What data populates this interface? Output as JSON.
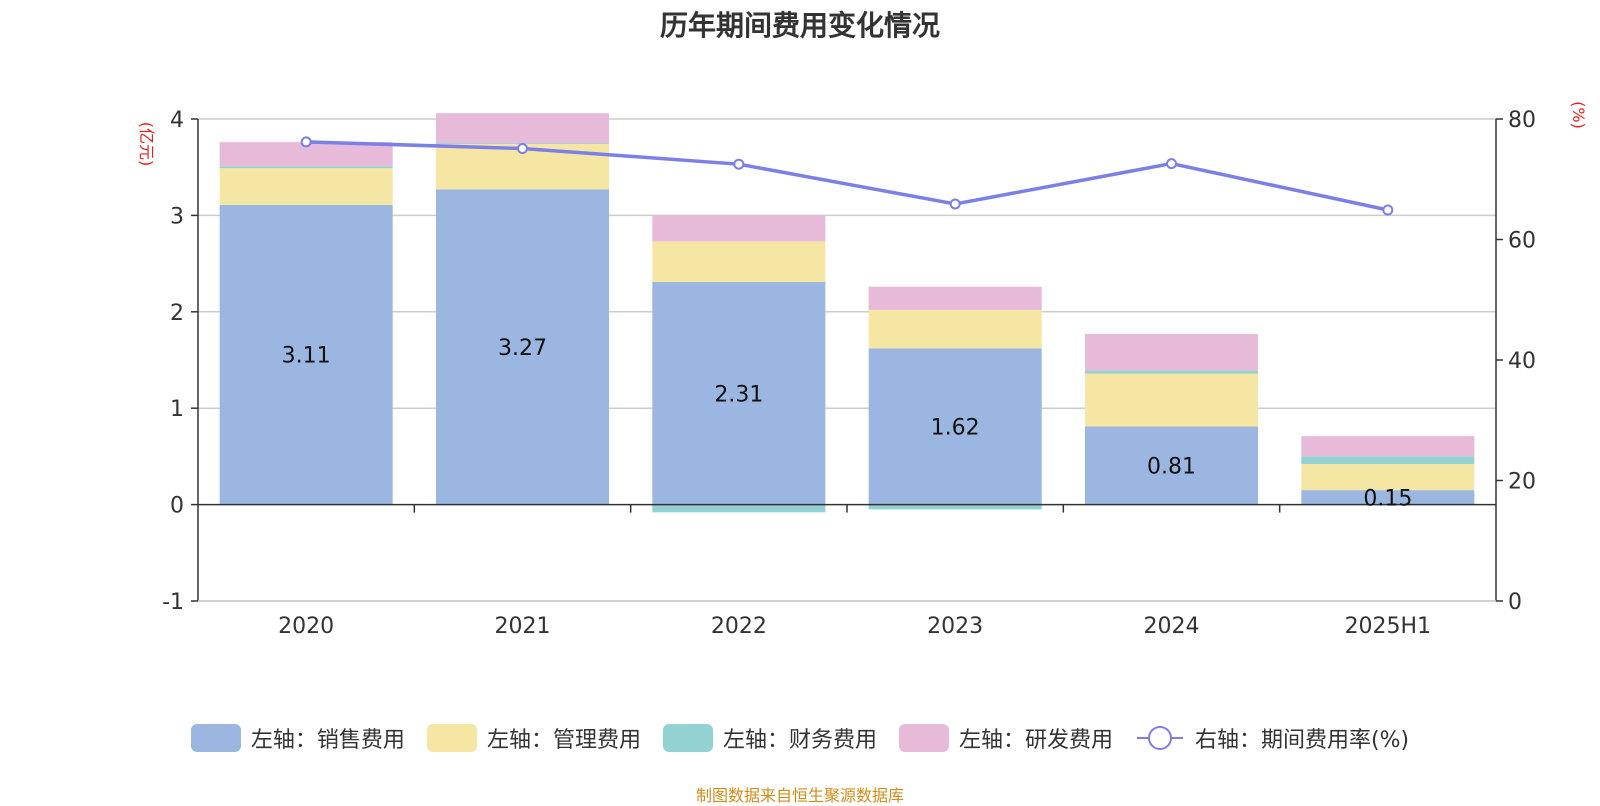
{
  "chart_data": {
    "type": "bar",
    "title": "历年期间费用变化情况",
    "categories": [
      "2020",
      "2021",
      "2022",
      "2023",
      "2024",
      "2025H1"
    ],
    "series": [
      {
        "name": "左轴：销售费用",
        "kind": "bar",
        "axis": "left",
        "color": "#9bb6e0",
        "values": [
          3.11,
          3.27,
          2.31,
          1.62,
          0.81,
          0.15
        ],
        "labels": [
          "3.11",
          "3.27",
          "2.31",
          "1.62",
          "0.81",
          "0.15"
        ]
      },
      {
        "name": "左轴：管理费用",
        "kind": "bar",
        "axis": "left",
        "color": "#f6e6a4",
        "values": [
          0.38,
          0.47,
          0.42,
          0.4,
          0.55,
          0.27
        ]
      },
      {
        "name": "左轴：财务费用",
        "kind": "bar",
        "axis": "left",
        "color": "#93d2d2",
        "values": [
          0.02,
          0.01,
          -0.08,
          -0.05,
          0.03,
          0.08
        ]
      },
      {
        "name": "左轴：研发费用",
        "kind": "bar",
        "axis": "left",
        "color": "#e6bad8",
        "values": [
          0.25,
          0.31,
          0.27,
          0.24,
          0.38,
          0.21
        ]
      },
      {
        "name": "右轴：期间费用率(%)",
        "kind": "line",
        "axis": "right",
        "color": "#7b7fe8",
        "values": [
          76.2,
          75.1,
          72.5,
          65.9,
          72.6,
          64.9
        ]
      }
    ],
    "left_axis": {
      "unit": "(亿元)",
      "ylim": [
        -1,
        4
      ],
      "ticks": [
        4,
        3,
        2,
        1,
        0,
        -1
      ]
    },
    "right_axis": {
      "unit": "(%)",
      "ylim": [
        0,
        80
      ],
      "ticks": [
        80,
        60,
        40,
        20,
        0
      ]
    },
    "grid": true,
    "legend_position": "bottom"
  },
  "source_note": "制图数据来自恒生聚源数据库"
}
